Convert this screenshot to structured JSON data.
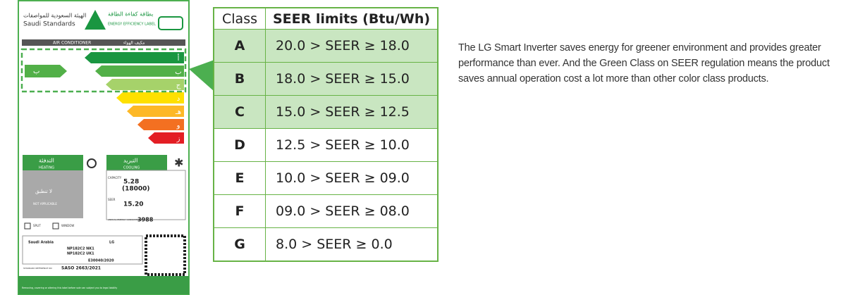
{
  "label": {
    "header_arabic": "الهيئة السعودية للمواصفات",
    "header_en": "Saudi Standards",
    "label_arabic": "بطاقة كفاءة الطاقة",
    "label_title": "ENERGY EFFICIENCY LABEL",
    "product": "AIR CONDITIONER",
    "product_arabic": "مكيف الهواء",
    "grade_letters": [
      "أ",
      "ب",
      "ج",
      "د",
      "هـ",
      "و",
      "ز"
    ],
    "rating": "ب",
    "heating_arabic": "التدفئة",
    "heating": "HEATING",
    "cooling_arabic": "التبريد",
    "cooling": "COOLING",
    "not_applicable_arabic": "لا تنطبق",
    "not_applicable": "NOT APPLICABLE",
    "capacity_label": "CAPACITY",
    "capacity": "5.28",
    "capacity_btu": "(18000)",
    "seer_label": "SEER",
    "seer": "15.20",
    "consumption_label": "ANNUAL ENERGY CONSUMPTION",
    "consumption": "3988",
    "split": "SPLIT",
    "window": "WINDOW",
    "country": "Saudi Arabia",
    "brand": "LG",
    "models": [
      "NP182C2 NK1",
      "NP182C2 UK1"
    ],
    "registration": "E30040/2020",
    "standard_label": "STANDARD REFERENCE NO",
    "standard": "SASO 2663/2021",
    "footer": "Removing, covering or altering this label before sale can subject you to legal liability"
  },
  "table": {
    "header": [
      "Class",
      "SEER limits (Btu/Wh)"
    ],
    "rows": [
      [
        "A",
        "20.0 > SEER ≥ 18.0"
      ],
      [
        "B",
        "18.0 > SEER ≥ 15.0"
      ],
      [
        "C",
        "15.0 > SEER ≥ 12.5"
      ],
      [
        "D",
        "12.5 > SEER ≥ 10.0"
      ],
      [
        "E",
        "10.0 > SEER ≥ 09.0"
      ],
      [
        "F",
        "09.0 > SEER ≥ 08.0"
      ],
      [
        "G",
        "8.0 > SEER ≥ 0.0"
      ]
    ]
  },
  "description": "The LG Smart Inverter saves energy for greener environment and provides greater performance than ever. And the Green Class on SEER regulation means the product saves annual operation cost a lot more than other color class products."
}
